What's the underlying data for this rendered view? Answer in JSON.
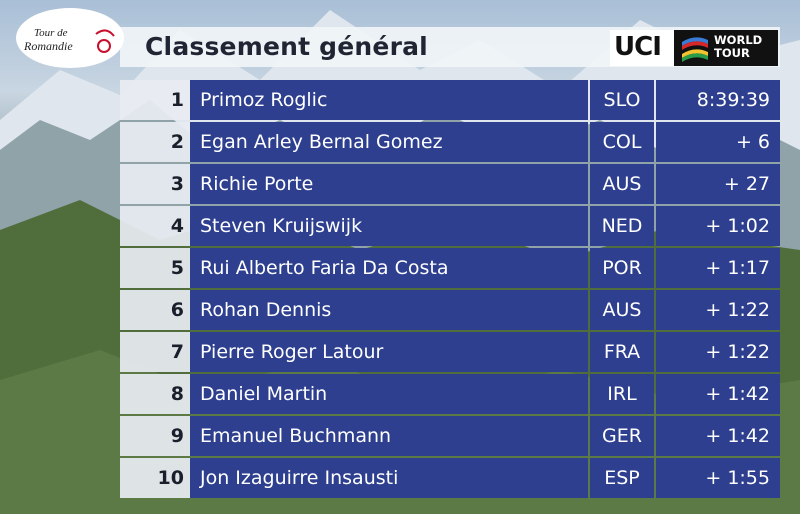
{
  "race_logo": {
    "text": "Tour de Romandie"
  },
  "title": "Classement général",
  "sponsor": {
    "main": "UCI",
    "badge_line1": "WORLD",
    "badge_line2": "TOUR"
  },
  "colors": {
    "row_bg": "#2d3f8e",
    "rank_bg": "#e8ecf2",
    "header_bg": "#f0f4f8"
  },
  "standings": [
    {
      "rank": "1",
      "rider": "Primoz Roglic",
      "country": "SLO",
      "time": "8:39:39"
    },
    {
      "rank": "2",
      "rider": "Egan Arley Bernal Gomez",
      "country": "COL",
      "time": "+ 6"
    },
    {
      "rank": "3",
      "rider": "Richie Porte",
      "country": "AUS",
      "time": "+ 27"
    },
    {
      "rank": "4",
      "rider": "Steven Kruijswijk",
      "country": "NED",
      "time": "+ 1:02"
    },
    {
      "rank": "5",
      "rider": "Rui Alberto Faria Da Costa",
      "country": "POR",
      "time": "+ 1:17"
    },
    {
      "rank": "6",
      "rider": "Rohan Dennis",
      "country": "AUS",
      "time": "+ 1:22"
    },
    {
      "rank": "7",
      "rider": "Pierre Roger Latour",
      "country": "FRA",
      "time": "+ 1:22"
    },
    {
      "rank": "8",
      "rider": "Daniel Martin",
      "country": "IRL",
      "time": "+ 1:42"
    },
    {
      "rank": "9",
      "rider": "Emanuel Buchmann",
      "country": "GER",
      "time": "+ 1:42"
    },
    {
      "rank": "10",
      "rider": "Jon Izaguirre Insausti",
      "country": "ESP",
      "time": "+ 1:55"
    }
  ]
}
